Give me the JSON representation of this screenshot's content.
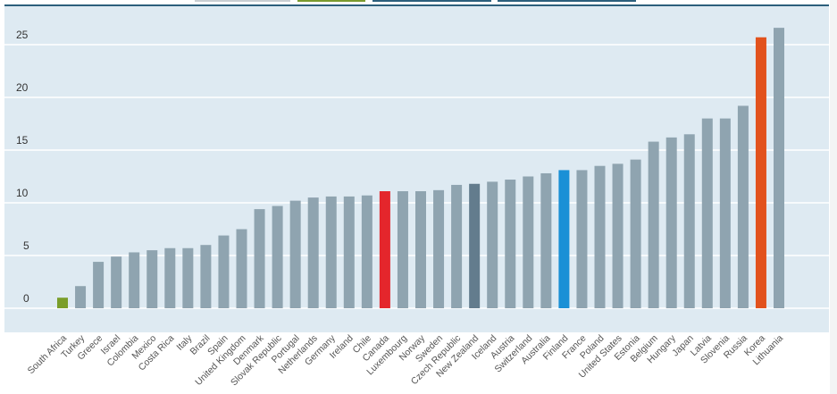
{
  "colors": {
    "default_bar": "#8fa4b0",
    "plot_background": "#deeaf2",
    "gridline": "#ffffff",
    "top_rule": "#2c5f7c",
    "tab_colors": [
      "#c9ced2",
      "#7a9a2e",
      "#2c5f7c",
      "#2c5f7c"
    ]
  },
  "chart_data": {
    "type": "bar",
    "title": "",
    "xlabel": "",
    "ylabel": "",
    "ylim": [
      0,
      27
    ],
    "yticks": [
      0,
      5,
      10,
      15,
      20,
      25
    ],
    "grid": true,
    "categories": [
      "South Africa",
      "Turkey",
      "Greece",
      "Israel",
      "Colombia",
      "Mexico",
      "Costa Rica",
      "Italy",
      "Brazil",
      "Spain",
      "United Kingdom",
      "Denmark",
      "Slovak Republic",
      "Portugal",
      "Netherlands",
      "Germany",
      "Ireland",
      "Chile",
      "Canada",
      "Luxembourg",
      "Norway",
      "Sweden",
      "Czech Republic",
      "New Zealand",
      "Iceland",
      "Austria",
      "Switzerland",
      "Australia",
      "Finland",
      "France",
      "Poland",
      "United States",
      "Estonia",
      "Belgium",
      "Hungary",
      "Japan",
      "Latvia",
      "Slovenia",
      "Russia",
      "Korea",
      "Lithuania"
    ],
    "values": [
      1.0,
      2.1,
      4.4,
      4.9,
      5.3,
      5.5,
      5.7,
      5.7,
      6.0,
      6.9,
      7.5,
      9.4,
      9.7,
      10.2,
      10.5,
      10.6,
      10.6,
      10.7,
      11.1,
      11.1,
      11.1,
      11.2,
      11.7,
      11.8,
      12.0,
      12.2,
      12.5,
      12.8,
      13.1,
      13.1,
      13.5,
      13.7,
      14.1,
      15.8,
      16.2,
      16.5,
      18.0,
      18.0,
      19.2,
      25.7,
      26.6
    ],
    "highlights": {
      "South Africa": {
        "bar": "#7a9e2a",
        "label": "#7a9e2a"
      },
      "Canada": {
        "bar": "#e4262c",
        "label": "#d9444a"
      },
      "New Zealand": {
        "bar": "#637c8d",
        "label": "#555555"
      },
      "Finland": {
        "bar": "#1a90d6",
        "label": "#4a90c8"
      },
      "Korea": {
        "bar": "#e2521d",
        "label": "#e06a4a"
      }
    }
  }
}
